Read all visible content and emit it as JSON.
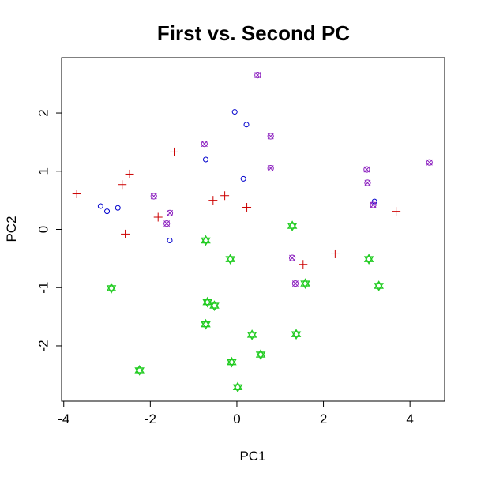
{
  "chart_data": {
    "type": "scatter",
    "title": "First vs. Second PC",
    "xlabel": "PC1",
    "ylabel": "PC2",
    "xlim": [
      -4.05,
      4.8
    ],
    "ylim": [
      -2.95,
      2.95
    ],
    "xticks": [
      "-4",
      "-2",
      "0",
      "2",
      "4"
    ],
    "xtick_values": [
      -4,
      -2,
      0,
      2,
      4
    ],
    "yticks": [
      "-2",
      "-1",
      "0",
      "1",
      "2"
    ],
    "ytick_values": [
      -2,
      -1,
      0,
      1,
      2
    ],
    "grid": false,
    "legend": false,
    "series": [
      {
        "marker": "circle",
        "color": "#0000cc",
        "points": [
          [
            -0.05,
            2.02
          ],
          [
            0.22,
            1.8
          ],
          [
            -0.72,
            1.2
          ],
          [
            0.15,
            0.87
          ],
          [
            -3.15,
            0.4
          ],
          [
            -3.0,
            0.31
          ],
          [
            -2.75,
            0.37
          ],
          [
            -1.55,
            -0.19
          ],
          [
            3.18,
            0.48
          ]
        ]
      },
      {
        "marker": "plus",
        "color": "#cc0000",
        "points": [
          [
            -1.45,
            1.33
          ],
          [
            -2.48,
            0.95
          ],
          [
            -2.65,
            0.77
          ],
          [
            -3.7,
            0.61
          ],
          [
            -0.28,
            0.58
          ],
          [
            -0.55,
            0.5
          ],
          [
            0.23,
            0.38
          ],
          [
            -1.82,
            0.21
          ],
          [
            -2.58,
            -0.08
          ],
          [
            1.53,
            -0.6
          ],
          [
            2.27,
            -0.42
          ],
          [
            3.68,
            0.31
          ]
        ]
      },
      {
        "marker": "circle-x",
        "color": "#8b1fbf",
        "points": [
          [
            0.48,
            2.65
          ],
          [
            -0.75,
            1.47
          ],
          [
            0.78,
            1.6
          ],
          [
            0.78,
            1.05
          ],
          [
            -1.92,
            0.57
          ],
          [
            -1.55,
            0.28
          ],
          [
            -1.62,
            0.1
          ],
          [
            3.0,
            1.03
          ],
          [
            3.02,
            0.8
          ],
          [
            3.15,
            0.42
          ],
          [
            4.45,
            1.15
          ],
          [
            1.28,
            -0.49
          ],
          [
            1.35,
            -0.93
          ]
        ]
      },
      {
        "marker": "star-of-david",
        "color": "#22cc22",
        "points": [
          [
            -0.72,
            -0.19
          ],
          [
            -0.15,
            -0.51
          ],
          [
            1.28,
            0.06
          ],
          [
            3.05,
            -0.51
          ],
          [
            3.28,
            -0.97
          ],
          [
            1.58,
            -0.93
          ],
          [
            -2.9,
            -1.01
          ],
          [
            -0.68,
            -1.25
          ],
          [
            -0.52,
            -1.31
          ],
          [
            -0.72,
            -1.63
          ],
          [
            0.35,
            -1.81
          ],
          [
            1.37,
            -1.8
          ],
          [
            -0.12,
            -2.28
          ],
          [
            0.55,
            -2.15
          ],
          [
            -2.25,
            -2.42
          ],
          [
            0.02,
            -2.71
          ]
        ]
      }
    ]
  }
}
